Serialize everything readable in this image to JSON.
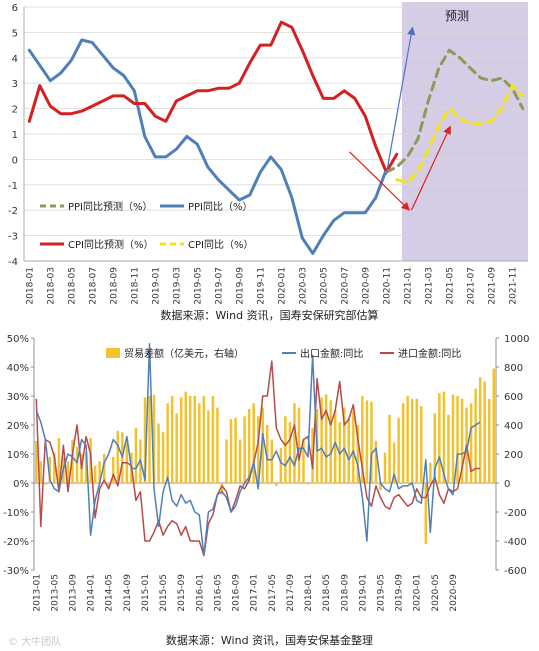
{
  "chart_data": [
    {
      "type": "line",
      "forecast_label": "预测",
      "forecast_shade_color": "#d5cde6",
      "x_tick_labels": [
        "2018-01",
        "2018-03",
        "2018-05",
        "2018-07",
        "2018-09",
        "2018-11",
        "2019-01",
        "2019-03",
        "2019-05",
        "2019-07",
        "2019-09",
        "2019-11",
        "2020-01",
        "2020-03",
        "2020-05",
        "2020-07",
        "2020-09",
        "2020-11",
        "2021-01",
        "2021-03",
        "2021-05",
        "2021-07",
        "2021-09",
        "2021-11"
      ],
      "ylim": [
        -4,
        6
      ],
      "y_ticks": [
        -4,
        -3,
        -2,
        -1,
        0,
        1,
        2,
        3,
        4,
        5,
        6
      ],
      "grid": true,
      "legend": [
        {
          "label": "PPI同比预测（%）",
          "color": "#8c9a5a",
          "style": "dashed"
        },
        {
          "label": "PPI同比（%）",
          "color": "#4f7fb8",
          "style": "solid"
        },
        {
          "label": "CPI同比预测（%）",
          "color": "#d42020",
          "style": "solid"
        },
        {
          "label": "CPI同比（%）",
          "color": "#f2e21a",
          "style": "dashed"
        }
      ],
      "series": [
        {
          "color": "#4f7fb8",
          "style": "solid",
          "x": [
            0,
            1,
            2,
            3,
            4,
            5,
            6,
            7,
            8,
            9,
            10,
            11,
            12,
            13,
            14,
            15,
            16,
            17,
            18,
            19,
            20,
            21,
            22,
            23,
            24,
            25,
            26,
            27,
            28,
            29,
            30,
            31,
            32,
            33,
            34
          ],
          "values": [
            4.3,
            3.7,
            3.1,
            3.4,
            3.9,
            4.7,
            4.6,
            4.1,
            3.6,
            3.3,
            2.7,
            0.9,
            0.1,
            0.1,
            0.4,
            0.9,
            0.6,
            -0.3,
            -0.8,
            -1.2,
            -1.6,
            -1.4,
            -0.5,
            0.1,
            -0.4,
            -1.5,
            -3.1,
            -3.7,
            -3.0,
            -2.4,
            -2.1,
            -2.1,
            -2.1,
            -1.5,
            -0.4
          ]
        },
        {
          "color": "#d42020",
          "style": "solid",
          "x": [
            0,
            1,
            2,
            3,
            4,
            5,
            6,
            7,
            8,
            9,
            10,
            11,
            12,
            13,
            14,
            15,
            16,
            17,
            18,
            19,
            20,
            21,
            22,
            23,
            24,
            25,
            26,
            27,
            28,
            29,
            30,
            31,
            32,
            33,
            34,
            35
          ],
          "values": [
            1.5,
            2.9,
            2.1,
            1.8,
            1.8,
            1.9,
            2.1,
            2.3,
            2.5,
            2.5,
            2.2,
            2.2,
            1.7,
            1.5,
            2.3,
            2.5,
            2.7,
            2.7,
            2.8,
            2.8,
            3.0,
            3.8,
            4.5,
            4.5,
            5.4,
            5.2,
            4.3,
            3.3,
            2.4,
            2.4,
            2.7,
            2.4,
            1.7,
            0.5,
            -0.5,
            0.2
          ]
        },
        {
          "color": "#8c9a5a",
          "style": "dashed",
          "x": [
            34,
            35,
            36,
            37,
            38,
            39,
            40,
            41,
            42,
            43,
            44,
            45,
            46,
            47
          ],
          "values": [
            -0.5,
            -0.3,
            0.1,
            0.8,
            2.3,
            3.6,
            4.3,
            4.0,
            3.6,
            3.2,
            3.1,
            3.2,
            2.8,
            2.0
          ]
        },
        {
          "color": "#f2e21a",
          "style": "dashed",
          "x": [
            35,
            36,
            37,
            38,
            39,
            40,
            41,
            42,
            43,
            44,
            45,
            46,
            47
          ],
          "values": [
            -0.8,
            -0.9,
            -0.5,
            0.4,
            1.3,
            2.0,
            1.6,
            1.4,
            1.4,
            1.5,
            2.0,
            2.9,
            2.5
          ]
        }
      ],
      "annotation_arrows": [
        {
          "color": "#4a72c0",
          "from": [
            34,
            -0.6
          ],
          "to": [
            36.5,
            5.2
          ]
        },
        {
          "color": "#e02020",
          "from": [
            30.5,
            0.3
          ],
          "to": [
            36.2,
            -2.0
          ]
        },
        {
          "color": "#e02020",
          "from": [
            36.4,
            -2.0
          ],
          "to": [
            40.1,
            1.3
          ]
        }
      ],
      "caption": "数据来源：Wind 资讯，国寿安保研究部估算"
    },
    {
      "type": "bar",
      "x_tick_labels": [
        "2013-01",
        "2013-05",
        "2013-09",
        "2014-01",
        "2014-05",
        "2014-09",
        "2015-01",
        "2015-05",
        "2015-09",
        "2016-01",
        "2016-05",
        "2016-09",
        "2017-01",
        "2017-05",
        "2017-09",
        "2018-01",
        "2018-05",
        "2018-09",
        "2019-01",
        "2019-05",
        "2019-09",
        "2020-01",
        "2020-05",
        "2020-09"
      ],
      "y_left": {
        "ylim": [
          -30,
          50
        ],
        "ticks": [
          "-30%",
          "-20%",
          "-10%",
          "0%",
          "10%",
          "20%",
          "30%",
          "40%",
          "50%"
        ]
      },
      "y_right": {
        "ylim": [
          -600,
          1000
        ],
        "ticks": [
          "-600",
          "-400",
          "-200",
          "0",
          "200",
          "400",
          "600",
          "800",
          "1000"
        ]
      },
      "legend": [
        {
          "label": "贸易差额（亿美元，右轴）",
          "color": "#f2c12e",
          "type": "bar"
        },
        {
          "label": "出口金额:同比",
          "color": "#4f7fb8",
          "type": "line"
        },
        {
          "label": "进口金额:同比",
          "color": "#b84a4a",
          "type": "line"
        }
      ],
      "series": [
        {
          "name": "贸易差额（亿美元，右轴）",
          "axis": "right",
          "color": "#f2c12e",
          "values": [
            290,
            150,
            -10,
            180,
            210,
            310,
            180,
            150,
            300,
            250,
            200,
            210,
            310,
            120,
            150,
            200,
            -20,
            180,
            360,
            350,
            280,
            210,
            380,
            300,
            590,
            600,
            610,
            410,
            350,
            550,
            600,
            480,
            590,
            630,
            600,
            600,
            550,
            600,
            500,
            600,
            520,
            -80,
            300,
            440,
            450,
            300,
            460,
            510,
            550,
            460,
            520,
            400,
            300,
            -20,
            240,
            460,
            420,
            550,
            520,
            300,
            -10,
            380,
            510,
            590,
            610,
            570,
            500,
            420,
            520,
            450,
            500,
            400,
            600,
            570,
            560,
            290,
            -50,
            210,
            470,
            280,
            450,
            550,
            600,
            580,
            580,
            530,
            -420,
            140,
            480,
            620,
            630,
            470,
            610,
            600,
            580,
            520,
            550,
            650,
            730,
            700,
            580,
            790
          ]
        },
        {
          "name": "出口金额:同比",
          "axis": "left",
          "color": "#4f7fb8",
          "values": [
            25,
            21,
            15,
            1,
            -2,
            -3,
            5,
            10,
            9,
            7,
            15,
            13,
            -18,
            -6,
            0,
            7,
            10,
            15,
            13,
            9,
            16,
            5,
            5,
            8,
            1,
            48,
            -2,
            -15,
            -3,
            2,
            -6,
            -8,
            -4,
            -7,
            -6,
            -10,
            -11,
            -25,
            -10,
            -9,
            -4,
            -3,
            -5,
            -10,
            -8,
            -3,
            0,
            2,
            7,
            -2,
            17,
            8,
            8,
            11,
            7,
            6,
            9,
            6,
            12,
            12,
            9,
            44,
            11,
            12,
            9,
            10,
            14,
            10,
            12,
            8,
            11,
            6,
            -5,
            -20,
            10,
            12,
            0,
            -2,
            -3,
            3,
            -2,
            -1,
            -1,
            0,
            -6,
            -7,
            8,
            -17,
            5,
            9,
            3,
            -2,
            -4,
            10,
            10,
            11,
            19,
            20,
            21
          ]
        },
        {
          "name": "进口金额:同比",
          "axis": "left",
          "color": "#b84a4a",
          "values": [
            29,
            -15,
            15,
            14,
            9,
            -3,
            13,
            -3,
            10,
            20,
            5,
            16,
            10,
            -12,
            -2,
            1,
            -2,
            3,
            -1,
            7,
            7,
            6,
            -6,
            -3,
            -20,
            -20,
            -17,
            -13,
            -18,
            -15,
            -13,
            -14,
            -18,
            -15,
            -20,
            -20,
            -20,
            -25,
            -14,
            -11,
            -4,
            -1,
            -3,
            -10,
            -6,
            -1,
            -2,
            1,
            7,
            14,
            30,
            30,
            42,
            19,
            15,
            13,
            15,
            20,
            8,
            15,
            16,
            5,
            36,
            22,
            25,
            20,
            25,
            35,
            20,
            22,
            27,
            15,
            5,
            -5,
            -8,
            -1,
            -5,
            -8,
            -9,
            -5,
            -4,
            -6,
            -8,
            -7,
            -2,
            -5,
            -5,
            -1,
            2,
            -4,
            -7,
            -2,
            -3,
            -2,
            5,
            13,
            4,
            5,
            5
          ]
        }
      ],
      "caption": "数据来源：Wind 资讯，国寿安保基金整理"
    }
  ],
  "watermark": "© 大牛团队"
}
